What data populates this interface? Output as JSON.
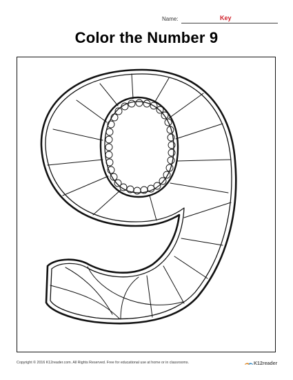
{
  "header": {
    "name_label": "Name:",
    "name_value": "Key"
  },
  "title": "Color the Number 9",
  "footer": {
    "copyright": "Copyright © 2016 K12reader.com. All Rights Reserved. Free for educational use at home or in classrooms."
  },
  "logo": {
    "text": "K12reader",
    "icon": "book-icon"
  },
  "colors": {
    "key_red": "#d0202a",
    "outline": "#111111"
  }
}
